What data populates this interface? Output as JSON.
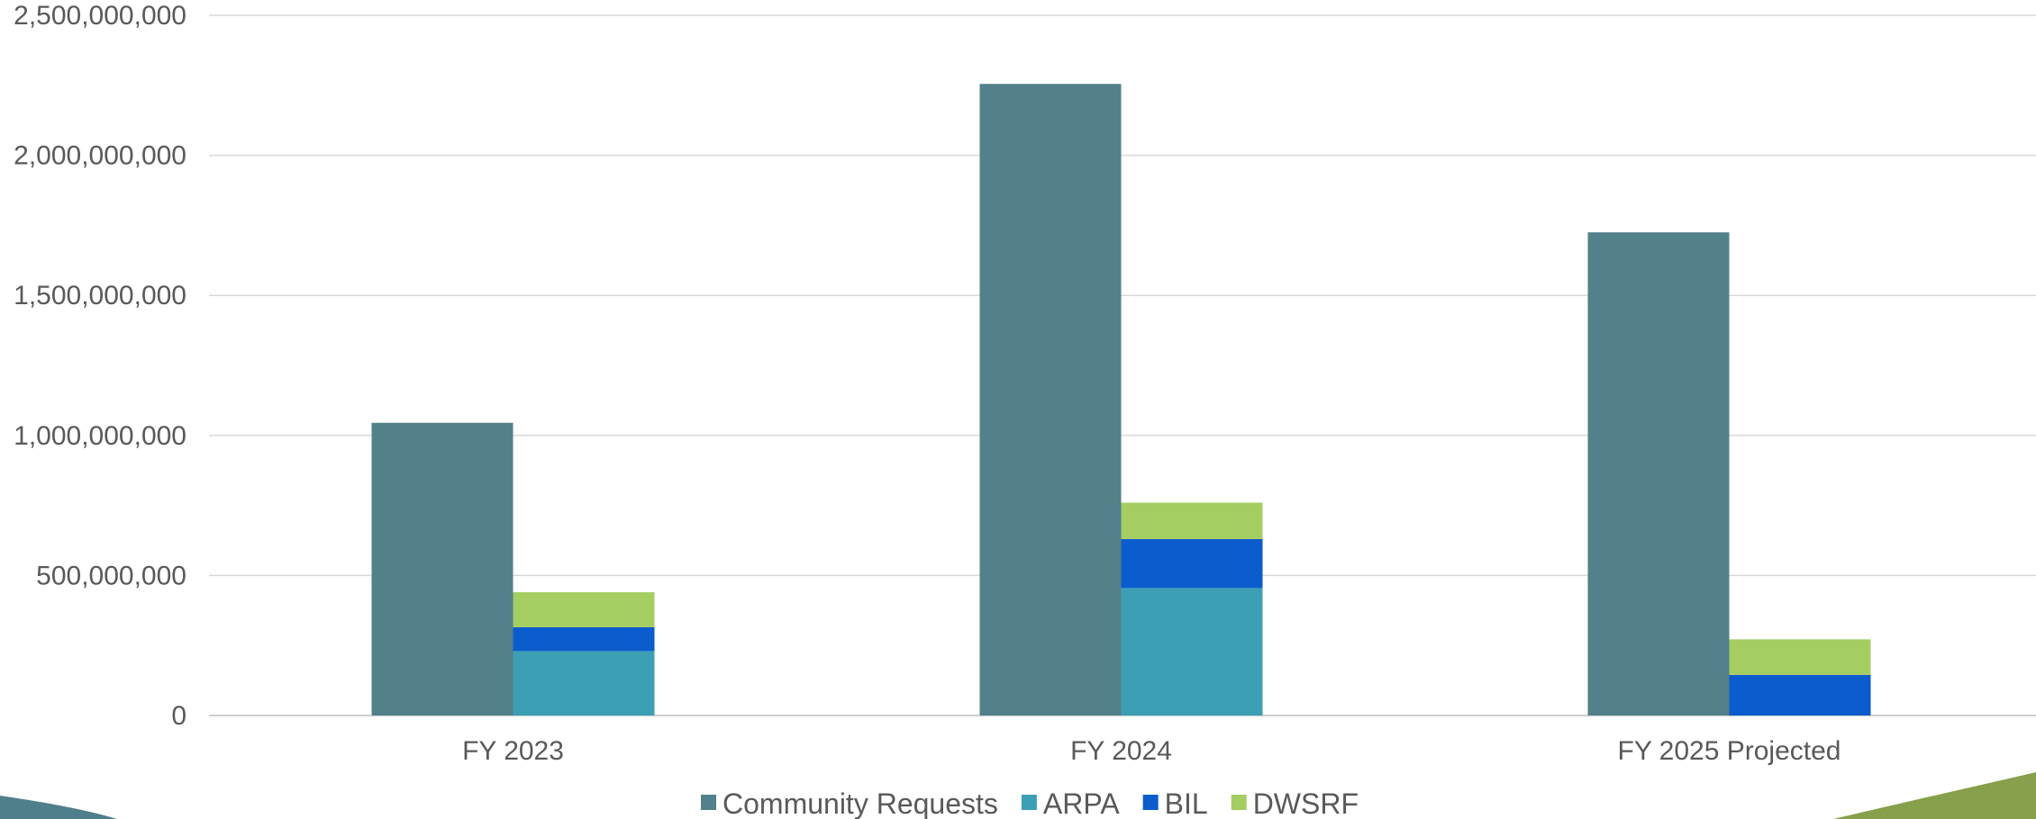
{
  "chart_data": {
    "type": "bar",
    "categories": [
      "FY 2023",
      "FY 2024",
      "FY 2025 Projected"
    ],
    "ylim": [
      0,
      2500000000
    ],
    "yticks": [
      0,
      500000000,
      1000000000,
      1500000000,
      2000000000,
      2500000000
    ],
    "ytick_labels": [
      "0",
      "500,000,000",
      "1,000,000,000",
      "1,500,000,000",
      "2,000,000,000",
      "2,500,000,000"
    ],
    "grid": true,
    "legend_position": "bottom",
    "series": [
      {
        "name": "Community Requests",
        "stack": "requests",
        "color": "#52808b",
        "values": [
          1045000000,
          2255000000,
          1725000000
        ]
      },
      {
        "name": "ARPA",
        "stack": "funding",
        "color": "#3d9fb4",
        "values": [
          230000000,
          455000000,
          0
        ]
      },
      {
        "name": "BIL",
        "stack": "funding",
        "color": "#0b5ccc",
        "values": [
          85000000,
          175000000,
          145000000
        ]
      },
      {
        "name": "DWSRF",
        "stack": "funding",
        "color": "#a4cd62",
        "values": [
          125000000,
          130000000,
          127000000
        ]
      }
    ]
  },
  "decor": {
    "left_swoosh_color": "#4f7f8a",
    "right_swoosh_color": "#86a04b"
  }
}
